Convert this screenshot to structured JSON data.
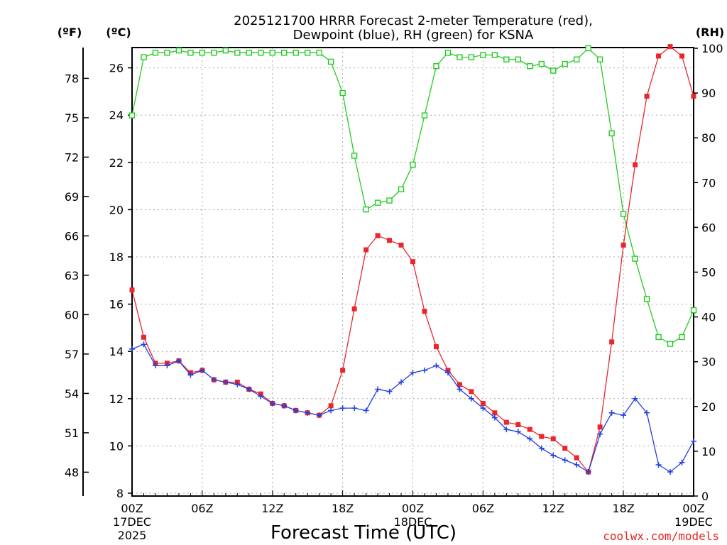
{
  "chart_data": {
    "type": "line",
    "title": "2025121700 HRRR Forecast 2-meter Temperature (red),",
    "subtitle": "Dewpoint (blue), RH (green) for KSNA",
    "xlabel": "Forecast Time (UTC)",
    "credit": "coolwx.com/models",
    "units": {
      "fahrenheit": "(ºF)",
      "celsius": "(ºC)",
      "rh": "(RH)"
    },
    "x": [
      0,
      1,
      2,
      3,
      4,
      5,
      6,
      7,
      8,
      9,
      10,
      11,
      12,
      13,
      14,
      15,
      16,
      17,
      18,
      19,
      20,
      21,
      22,
      23,
      24,
      25,
      26,
      27,
      28,
      29,
      30,
      31,
      32,
      33,
      34,
      35,
      36,
      37,
      38,
      39,
      40,
      41,
      42,
      43,
      44,
      45,
      46,
      47,
      48
    ],
    "xlim": [
      0,
      48
    ],
    "x_ticks": [
      {
        "hour": 0,
        "label": "00Z",
        "line2": "17DEC",
        "line3": "2025"
      },
      {
        "hour": 6,
        "label": "06Z"
      },
      {
        "hour": 12,
        "label": "12Z"
      },
      {
        "hour": 18,
        "label": "18Z"
      },
      {
        "hour": 24,
        "label": "00Z",
        "line2": "18DEC"
      },
      {
        "hour": 30,
        "label": "06Z"
      },
      {
        "hour": 36,
        "label": "12Z"
      },
      {
        "hour": 42,
        "label": "18Z"
      },
      {
        "hour": 48,
        "label": "00Z",
        "line2": "19DEC"
      }
    ],
    "ylim_c": [
      8,
      27
    ],
    "y_ticks_c": [
      8,
      10,
      12,
      14,
      16,
      18,
      20,
      22,
      24,
      26
    ],
    "y_ticks_f": [
      48,
      51,
      54,
      57,
      60,
      63,
      66,
      69,
      72,
      75,
      78
    ],
    "ylim_rh": [
      0,
      100
    ],
    "y_ticks_rh": [
      0,
      10,
      20,
      30,
      40,
      50,
      60,
      70,
      80,
      90,
      100
    ],
    "series": [
      {
        "name": "Temperature",
        "axis": "c",
        "color": "#e8262c",
        "marker": "filled-square",
        "values": [
          16.6,
          14.6,
          13.5,
          13.5,
          13.6,
          13.1,
          13.2,
          12.8,
          12.7,
          12.7,
          12.4,
          12.2,
          11.8,
          11.7,
          11.5,
          11.4,
          11.3,
          11.7,
          13.2,
          15.8,
          18.3,
          18.9,
          18.7,
          18.5,
          17.8,
          15.7,
          14.2,
          13.2,
          12.6,
          12.3,
          11.8,
          11.4,
          11.0,
          10.9,
          10.7,
          10.4,
          10.3,
          9.9,
          9.5,
          8.9,
          10.8,
          14.4,
          18.5,
          21.9,
          24.8,
          26.5,
          26.9,
          26.5,
          24.8
        ]
      },
      {
        "name": "Dewpoint",
        "axis": "c",
        "color": "#2040e0",
        "marker": "plus",
        "values": [
          14.1,
          14.3,
          13.4,
          13.4,
          13.6,
          13.0,
          13.2,
          12.8,
          12.7,
          12.6,
          12.4,
          12.1,
          11.8,
          11.7,
          11.5,
          11.4,
          11.3,
          11.5,
          11.6,
          11.6,
          11.5,
          12.4,
          12.3,
          12.7,
          13.1,
          13.2,
          13.4,
          13.1,
          12.4,
          12.0,
          11.6,
          11.2,
          10.7,
          10.6,
          10.3,
          9.9,
          9.6,
          9.4,
          9.2,
          8.9,
          10.5,
          11.4,
          11.3,
          12.0,
          11.4,
          9.2,
          8.9,
          9.3,
          10.2
        ]
      },
      {
        "name": "RH",
        "axis": "rh",
        "color": "#22cc22",
        "marker": "open-square",
        "values": [
          85,
          98,
          99,
          99,
          99.5,
          99,
          99,
          99,
          99.5,
          99,
          99,
          99,
          99,
          99,
          99,
          99,
          99,
          97,
          90,
          76,
          64,
          65.5,
          66,
          68.5,
          74,
          85,
          96,
          99,
          98,
          98,
          98.5,
          98.5,
          97.5,
          97.5,
          96,
          96.5,
          95,
          96.5,
          97.5,
          100,
          97.5,
          81,
          63,
          53,
          44,
          35.5,
          34,
          35.5,
          41.5
        ]
      }
    ]
  }
}
